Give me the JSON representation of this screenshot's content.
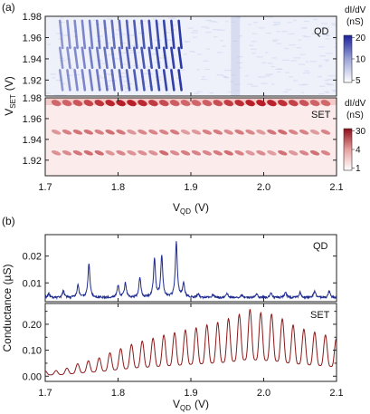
{
  "panel_a": {
    "label": "(a)",
    "xlabel_main": "V",
    "xlabel_sub": "QD",
    "xlabel_unit": "(V)",
    "ylabel_main": "V",
    "ylabel_sub": "SET",
    "ylabel_unit": "(V)"
  },
  "panel_b": {
    "label": "(b)",
    "xlabel_main": "V",
    "xlabel_sub": "QD",
    "xlabel_unit": "(V)",
    "ylabel": "Conductance (µS)"
  },
  "chart_data": [
    {
      "type": "heatmap",
      "panel": "a-top",
      "label": "QD",
      "x_range": [
        1.7,
        2.1
      ],
      "y_range": [
        1.905,
        1.98
      ],
      "xticks": [
        "1.7",
        "1.8",
        "1.9",
        "2.0",
        "2.1"
      ],
      "yticks": [
        "1.92",
        "1.94",
        "1.96",
        "1.98"
      ],
      "colorbar": {
        "title": "dI/dV",
        "unit": "(nS)",
        "ticks": [
          "20",
          "10",
          "5"
        ],
        "low_color": "#ffffff",
        "high_color": "#1a1f9a"
      },
      "features": {
        "stripe_region_x": [
          1.72,
          1.9
        ],
        "diamond_rows_y": [
          1.963,
          1.941,
          1.92
        ]
      }
    },
    {
      "type": "heatmap",
      "panel": "a-bottom",
      "label": "SET",
      "x_range": [
        1.7,
        2.1
      ],
      "y_range": [
        1.905,
        1.98
      ],
      "xticks": [
        "1.7",
        "1.8",
        "1.9",
        "2.0",
        "2.1"
      ],
      "yticks": [
        "1.92",
        "1.94",
        "1.96",
        "1.98"
      ],
      "colorbar": {
        "title": "dI/dV",
        "unit": "(nS)",
        "ticks": [
          "30",
          "4",
          "1"
        ],
        "low_color": "#ffffff",
        "high_color": "#8e0b16"
      },
      "features": {
        "peak_rows_y": [
          1.975,
          1.947,
          1.927
        ]
      }
    },
    {
      "type": "line",
      "panel": "b-top",
      "label": "QD",
      "series": [
        {
          "name": "QD",
          "color": "#1e2b8f",
          "baseline": 0.0045,
          "peaks_x": [
            1.705,
            1.725,
            1.745,
            1.76,
            1.8,
            1.81,
            1.83,
            1.85,
            1.86,
            1.88,
            1.89,
            1.91,
            1.93,
            1.95,
            1.97,
            1.99,
            2.01,
            2.03,
            2.05,
            2.07,
            2.09
          ],
          "peaks_y": [
            0.006,
            0.007,
            0.009,
            0.017,
            0.009,
            0.01,
            0.012,
            0.019,
            0.02,
            0.025,
            0.01,
            0.006,
            0.0055,
            0.006,
            0.0055,
            0.006,
            0.006,
            0.0065,
            0.0065,
            0.007,
            0.007
          ]
        }
      ],
      "xlim": [
        1.7,
        2.1
      ],
      "ylim": [
        0.003,
        0.028
      ],
      "xticks": [
        "1.7",
        "1.8",
        "1.9",
        "2.0",
        "2.1"
      ],
      "yticks": [
        "0.01",
        "0.02"
      ]
    },
    {
      "type": "line",
      "panel": "b-bottom",
      "label": "SET",
      "series": [
        {
          "name": "SET",
          "color": "#8b1a1a",
          "peaks_x": [
            1.715,
            1.73,
            1.745,
            1.76,
            1.775,
            1.79,
            1.8,
            1.81,
            1.83,
            1.84,
            1.85,
            1.865,
            1.88,
            1.9,
            1.91,
            1.925,
            1.94,
            1.96,
            1.98,
            2.0,
            2.01,
            2.02,
            2.04,
            2.055,
            2.07,
            2.085,
            2.1
          ],
          "peaks_y": [
            0.02,
            0.03,
            0.05,
            0.06,
            0.07,
            0.09,
            0.1,
            0.12,
            0.13,
            0.14,
            0.15,
            0.16,
            0.17,
            0.18,
            0.19,
            0.2,
            0.21,
            0.23,
            0.26,
            0.24,
            0.25,
            0.22,
            0.2,
            0.18,
            0.17,
            0.16,
            0.14
          ]
        }
      ],
      "xlim": [
        1.7,
        2.1
      ],
      "ylim": [
        -0.02,
        0.28
      ],
      "xticks": [
        "1.7",
        "1.8",
        "1.9",
        "2.0",
        "2.1"
      ],
      "yticks": [
        "0.00",
        "0.10",
        "0.20"
      ],
      "minor_yticks": [
        "0.05",
        "0.15",
        "0.25"
      ]
    }
  ]
}
